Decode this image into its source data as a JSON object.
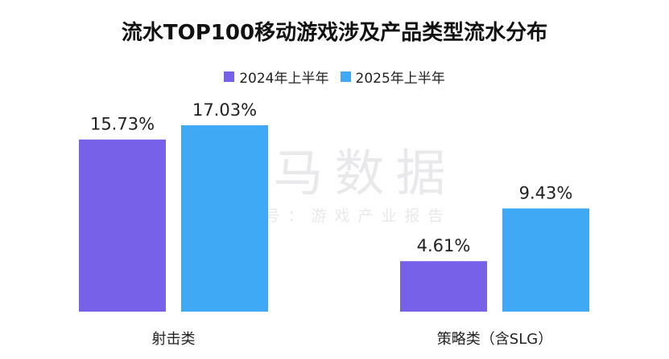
{
  "title": "流水TOP100移动游戏涉及产品类型流水分布",
  "watermark": {
    "main": "伽马数据",
    "sub": "微信号：游戏产业报告"
  },
  "colors": {
    "s2024": "#7661E8",
    "s2025": "#3FA9F5",
    "text": "#222222"
  },
  "chart_data": {
    "type": "bar",
    "title": "流水TOP100移动游戏涉及产品类型流水分布",
    "categories": [
      "射击类",
      "策略类（含SLG）"
    ],
    "series": [
      {
        "name": "2024年上半年",
        "values": [
          15.73,
          4.61
        ],
        "labels": [
          "15.73%",
          "4.61%"
        ]
      },
      {
        "name": "2025年上半年",
        "values": [
          17.03,
          9.43
        ],
        "labels": [
          "17.03%",
          "9.43%"
        ]
      }
    ],
    "ylim": [
      0,
      20
    ],
    "legend": "top-center",
    "grid": false
  }
}
